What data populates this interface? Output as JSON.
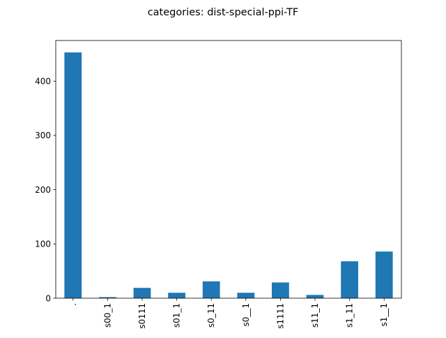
{
  "chart_data": {
    "type": "bar",
    "title": "categories: dist-special-ppi-TF",
    "xlabel": "",
    "ylabel": "",
    "categories": [
      ".",
      "s00_1",
      "s0111",
      "s01_1",
      "s0_11",
      "s0__1",
      "s1111",
      "s11_1",
      "s1_11",
      "s1__1"
    ],
    "values": [
      453,
      2,
      19,
      10,
      31,
      10,
      29,
      6,
      68,
      86
    ],
    "ylim": [
      0,
      475
    ],
    "yticks": [
      0,
      100,
      200,
      300,
      400
    ],
    "grid": false,
    "legend": "none",
    "bar_color": "#1f77b4"
  }
}
